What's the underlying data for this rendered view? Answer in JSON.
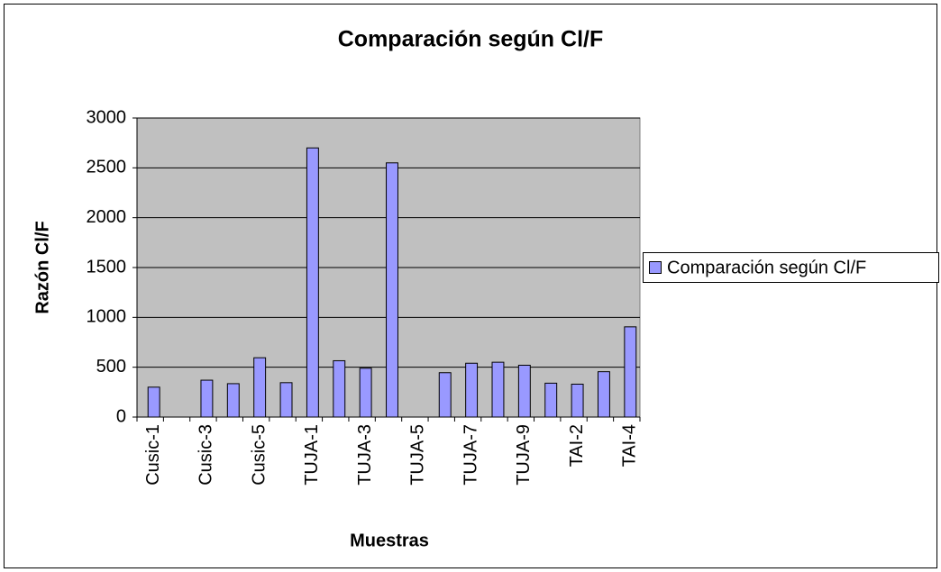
{
  "chart_data": {
    "type": "bar",
    "title": "Comparación según Cl/F",
    "x_label": "Muestras",
    "y_label": "Razón Cl/F",
    "categories": [
      "Cusic-1",
      null,
      "Cusic-3",
      null,
      "Cusic-5",
      null,
      "TUJA-1",
      null,
      "TUJA-3",
      null,
      "TUJA-5",
      null,
      "TUJA-7",
      null,
      "TUJA-9",
      null,
      "TAI-2",
      null,
      "TAI-4"
    ],
    "series": [
      {
        "name": "Comparación según Cl/F",
        "color": "#9999ff",
        "values": [
          300,
          null,
          370,
          335,
          595,
          345,
          2700,
          565,
          490,
          2550,
          null,
          445,
          540,
          550,
          520,
          340,
          330,
          455,
          905
        ]
      }
    ],
    "ylim": [
      0,
      3000
    ],
    "yticks": [
      0,
      500,
      1000,
      1500,
      2000,
      2500,
      3000
    ],
    "grid": true,
    "legend": "right"
  }
}
